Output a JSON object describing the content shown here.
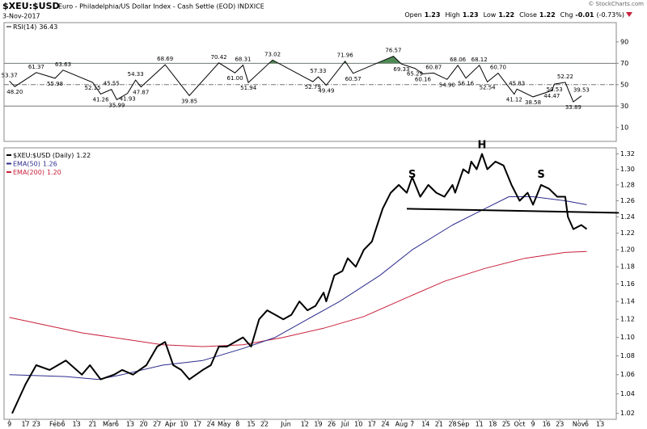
{
  "header": {
    "symbol": "$XEU:$USD",
    "description": "Euro - Philadelphia/US Dollar Index - Cash Settle (EOD) INDXICE",
    "date": "3-Nov-2017",
    "copyright": "© StockCharts.com",
    "quote": [
      {
        "label": "Open",
        "value": 1.23
      },
      {
        "label": "High",
        "value": 1.23
      },
      {
        "label": "Low",
        "value": 1.22
      },
      {
        "label": "Close",
        "value": 1.22
      },
      {
        "label": "Chg",
        "value": -0.01,
        "pct": "(-0.73%)"
      }
    ]
  },
  "chart_data": [
    {
      "type": "line",
      "name": "RSI(14)",
      "last_value": 36.43,
      "color": "#000000",
      "fill_color": "#4f8a55",
      "x": [
        0,
        2,
        10,
        17,
        20,
        31,
        34,
        38,
        40,
        44,
        47,
        49,
        58,
        67,
        78,
        84,
        87,
        89,
        98,
        113,
        115,
        118,
        125,
        128,
        143,
        146,
        151,
        154,
        158,
        163,
        167,
        170,
        175,
        178,
        182,
        188,
        189,
        195,
        202,
        203,
        207,
        210,
        213
      ],
      "values": [
        53.37,
        48.2,
        61.37,
        55.98,
        63.63,
        52.15,
        41.26,
        45.55,
        35.99,
        41.93,
        54.33,
        47.87,
        68.69,
        39.85,
        70.42,
        61,
        68.31,
        51.94,
        73.02,
        52.79,
        57.33,
        49.49,
        71.96,
        60.57,
        76.57,
        69.33,
        65.29,
        60.16,
        60.87,
        54.9,
        68.06,
        56.16,
        68.12,
        52.54,
        60.7,
        41.12,
        45.83,
        38.58,
        44.47,
        50.53,
        52.22,
        33.89,
        39.53
      ],
      "value_labels": [
        "53.37",
        "48.20",
        "61.37",
        "55.98",
        "63.63",
        "52.15",
        "41.26",
        "45.55",
        "35.99",
        "41.93",
        "54.33",
        "47.87",
        "68.69",
        "39.85",
        "70.42",
        "61.00",
        "68.31",
        "51.94",
        "73.02",
        "52.79",
        "57.33",
        "49.49",
        "71.96",
        "60.57",
        "76.57",
        "69.33",
        "65.29",
        "60.16",
        "60.87",
        "54.90",
        "68.06",
        "56.16",
        "68.12",
        "52.54",
        "60.70",
        "41.12",
        "45.83",
        "38.58",
        "44.47",
        "50.53",
        "52.22",
        "33.89",
        "39.53"
      ],
      "xlim": [
        -2,
        226
      ],
      "ylim": [
        -3,
        108
      ],
      "yticks": [
        10,
        30,
        50,
        70,
        90
      ],
      "overbought": 70,
      "oversold": 30,
      "midline": 50
    },
    {
      "type": "line",
      "log": true,
      "xlim": [
        -2,
        226
      ],
      "ylim": [
        1.014,
        1.328
      ],
      "yticks": [
        1.02,
        1.04,
        1.06,
        1.08,
        {
          "value": 1.1,
          "label": "1.10"
        },
        1.12,
        1.14,
        1.16,
        1.18,
        {
          "value": 1.2,
          "label": "1.20"
        },
        1.22,
        1.24,
        1.26,
        1.28,
        {
          "value": 1.3,
          "label": "1.30"
        },
        1.32
      ],
      "xticks": [
        {
          "value": 0,
          "label": "9"
        },
        {
          "value": 6,
          "label": "17"
        },
        {
          "value": 10,
          "label": "23"
        },
        {
          "value": 17,
          "label": "Feb"
        },
        {
          "value": 20,
          "label": "6"
        },
        {
          "value": 25,
          "label": "13"
        },
        {
          "value": 31,
          "label": "21"
        },
        {
          "value": 37,
          "label": "Mar"
        },
        {
          "value": 40,
          "label": "6"
        },
        {
          "value": 45,
          "label": "13"
        },
        {
          "value": 50,
          "label": "20"
        },
        {
          "value": 55,
          "label": "27"
        },
        {
          "value": 60,
          "label": "Apr"
        },
        {
          "value": 65,
          "label": "10"
        },
        {
          "value": 70,
          "label": "17"
        },
        {
          "value": 75,
          "label": "24"
        },
        {
          "value": 80,
          "label": "May"
        },
        {
          "value": 85,
          "label": "8"
        },
        {
          "value": 90,
          "label": "15"
        },
        {
          "value": 95,
          "label": "22"
        },
        {
          "value": 103,
          "label": "Jun"
        },
        {
          "value": 110,
          "label": "12"
        },
        {
          "value": 115,
          "label": "19"
        },
        {
          "value": 120,
          "label": "26"
        },
        {
          "value": 125,
          "label": "Jul"
        },
        {
          "value": 130,
          "label": "10"
        },
        {
          "value": 135,
          "label": "17"
        },
        {
          "value": 140,
          "label": "24"
        },
        {
          "value": 146,
          "label": "Aug"
        },
        {
          "value": 150,
          "label": "7"
        },
        {
          "value": 155,
          "label": "14"
        },
        {
          "value": 160,
          "label": "21"
        },
        {
          "value": 165,
          "label": "28"
        },
        {
          "value": 169,
          "label": "Sep"
        },
        {
          "value": 175,
          "label": "11"
        },
        {
          "value": 180,
          "label": "18"
        },
        {
          "value": 185,
          "label": "25"
        },
        {
          "value": 190,
          "label": "Oct"
        },
        {
          "value": 195,
          "label": "9"
        },
        {
          "value": 200,
          "label": "16"
        },
        {
          "value": 205,
          "label": "23"
        },
        {
          "value": 212,
          "label": "Nov"
        },
        {
          "value": 215,
          "label": "6"
        },
        {
          "value": 220,
          "label": "13"
        }
      ],
      "series": [
        {
          "name": "$XEU:$USD (Daily)",
          "last": 1.22,
          "color": "#000000",
          "width": 2,
          "x": [
            1,
            6,
            10,
            15,
            21,
            27,
            30,
            34,
            39,
            42,
            46,
            51,
            55,
            58,
            61,
            64,
            67,
            72,
            75,
            78,
            81,
            84,
            87,
            90,
            93,
            96,
            99,
            102,
            105,
            108,
            111,
            114,
            117,
            118,
            121,
            124,
            126,
            129,
            132,
            135,
            136,
            139,
            142,
            145,
            148,
            150,
            153,
            156,
            159,
            162,
            165,
            166,
            169,
            171,
            172,
            174,
            176,
            178,
            181,
            184,
            187,
            190,
            193,
            195,
            198,
            201,
            204,
            207,
            208,
            210,
            213,
            215
          ],
          "values": [
            1.02,
            1.05,
            1.07,
            1.065,
            1.075,
            1.06,
            1.07,
            1.055,
            1.06,
            1.065,
            1.06,
            1.07,
            1.09,
            1.095,
            1.07,
            1.065,
            1.055,
            1.065,
            1.07,
            1.09,
            1.09,
            1.095,
            1.1,
            1.09,
            1.12,
            1.13,
            1.125,
            1.12,
            1.125,
            1.14,
            1.13,
            1.135,
            1.15,
            1.14,
            1.17,
            1.175,
            1.19,
            1.18,
            1.2,
            1.21,
            1.22,
            1.25,
            1.27,
            1.28,
            1.27,
            1.29,
            1.265,
            1.28,
            1.27,
            1.265,
            1.28,
            1.27,
            1.3,
            1.295,
            1.31,
            1.3,
            1.32,
            1.3,
            1.31,
            1.305,
            1.28,
            1.26,
            1.27,
            1.255,
            1.28,
            1.275,
            1.265,
            1.265,
            1.24,
            1.225,
            1.23,
            1.225
          ]
        },
        {
          "name": "EMA(50)",
          "last": 1.26,
          "color": "#2b2b8f",
          "width": 1,
          "x": [
            0,
            21,
            33,
            42,
            57,
            72,
            87,
            99,
            111,
            123,
            138,
            150,
            165,
            177,
            186,
            195,
            207,
            215
          ],
          "values": [
            1.06,
            1.058,
            1.055,
            1.06,
            1.07,
            1.075,
            1.088,
            1.1,
            1.12,
            1.14,
            1.17,
            1.2,
            1.23,
            1.25,
            1.265,
            1.265,
            1.26,
            1.255
          ]
        },
        {
          "name": "EMA(200)",
          "last": {
            "value": 1.2,
            "label": "1.20"
          },
          "color": "#c8203a",
          "width": 1,
          "x": [
            0,
            27,
            57,
            72,
            87,
            102,
            117,
            132,
            147,
            162,
            177,
            192,
            207,
            215
          ],
          "values": [
            1.122,
            1.105,
            1.092,
            1.09,
            1.092,
            1.1,
            1.11,
            1.123,
            1.143,
            1.163,
            1.178,
            1.19,
            1.197,
            1.198
          ]
        }
      ],
      "annotations": [
        {
          "text": "S",
          "x": 150,
          "y": 1.293
        },
        {
          "text": "H",
          "x": 176,
          "y": 1.331
        },
        {
          "text": "S",
          "x": 198,
          "y": 1.293
        }
      ],
      "neckline": {
        "x": [
          148,
          227
        ],
        "values": [
          1.25,
          1.245
        ]
      }
    }
  ]
}
